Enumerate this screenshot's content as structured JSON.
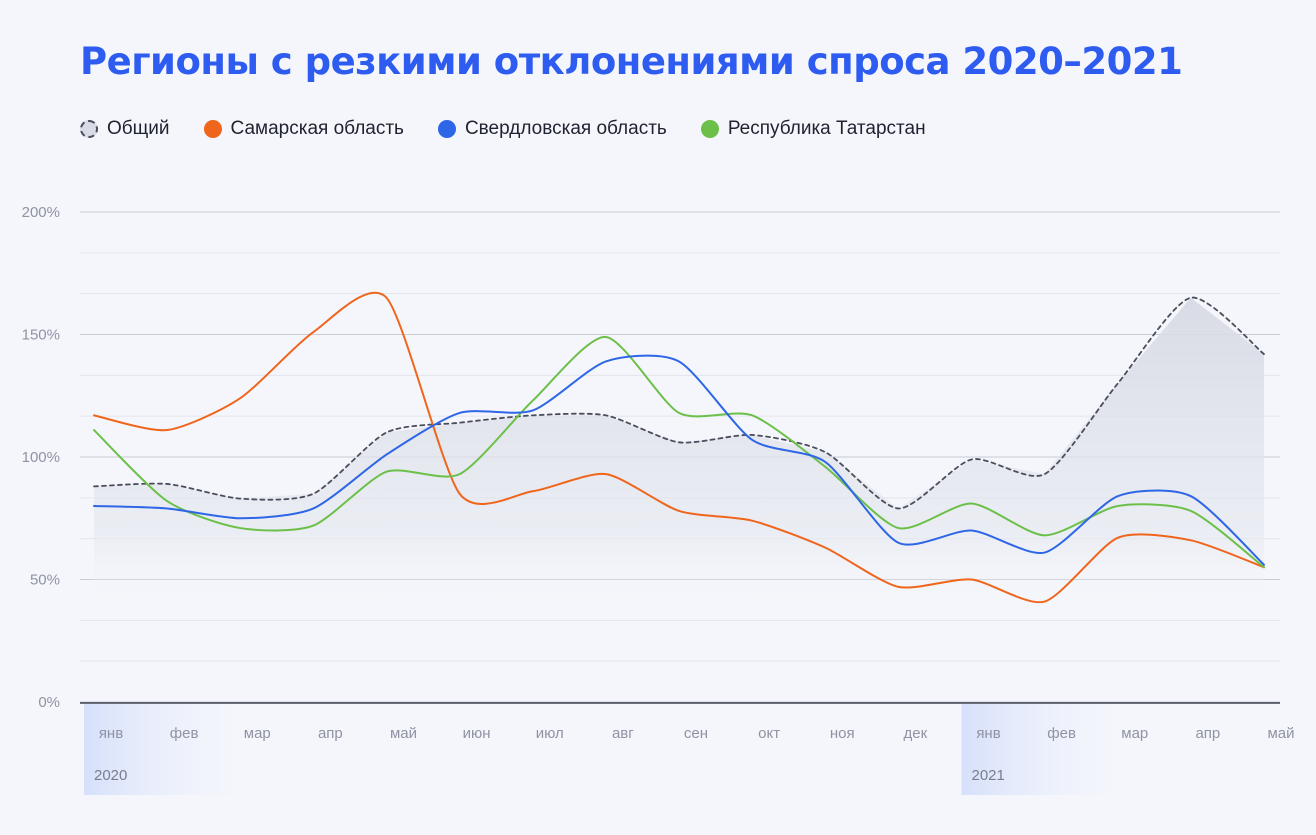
{
  "title": "Регионы с резкими отклонениями спроса 2020–2021",
  "legend": [
    {
      "name": "Общий",
      "style": "dashed",
      "color": "#4a4e5c"
    },
    {
      "name": "Самарская область",
      "style": "solid",
      "color": "#f0651c"
    },
    {
      "name": "Свердловская область",
      "style": "solid",
      "color": "#2e66e8"
    },
    {
      "name": "Республика Татарстан",
      "style": "solid",
      "color": "#6cc04a"
    }
  ],
  "chart_data": {
    "type": "line",
    "categories": [
      "янв",
      "фев",
      "мар",
      "апр",
      "май",
      "июн",
      "июл",
      "авг",
      "сен",
      "окт",
      "ноя",
      "дек",
      "янв",
      "фев",
      "мар",
      "апр",
      "май"
    ],
    "year_labels": [
      {
        "label": "2020",
        "index": 0
      },
      {
        "label": "2021",
        "index": 12
      }
    ],
    "yticks": [
      "0%",
      "50%",
      "100%",
      "150%",
      "200%"
    ],
    "ylim": [
      0,
      200
    ],
    "grid": true,
    "legend_position": "top-left",
    "series": [
      {
        "name": "Общий",
        "color": "#4a4e5c",
        "dashed": true,
        "area_fill": "#e1e4ec",
        "values": [
          88,
          89,
          83,
          85,
          110,
          114,
          117,
          117,
          106,
          109,
          102,
          79,
          99,
          93,
          130,
          165,
          142
        ]
      },
      {
        "name": "Самарская область",
        "color": "#f0651c",
        "values": [
          117,
          111,
          124,
          151,
          165,
          85,
          86,
          93,
          78,
          74,
          63,
          47,
          50,
          41,
          67,
          66,
          55
        ]
      },
      {
        "name": "Свердловская область",
        "color": "#2e66e8",
        "values": [
          80,
          79,
          75,
          79,
          101,
          118,
          119,
          139,
          139,
          107,
          98,
          65,
          70,
          61,
          84,
          84,
          56
        ]
      },
      {
        "name": "Республика Татарстан",
        "color": "#6cc04a",
        "values": [
          111,
          82,
          71,
          72,
          94,
          93,
          123,
          149,
          118,
          117,
          96,
          71,
          81,
          68,
          80,
          78,
          55
        ]
      }
    ]
  }
}
